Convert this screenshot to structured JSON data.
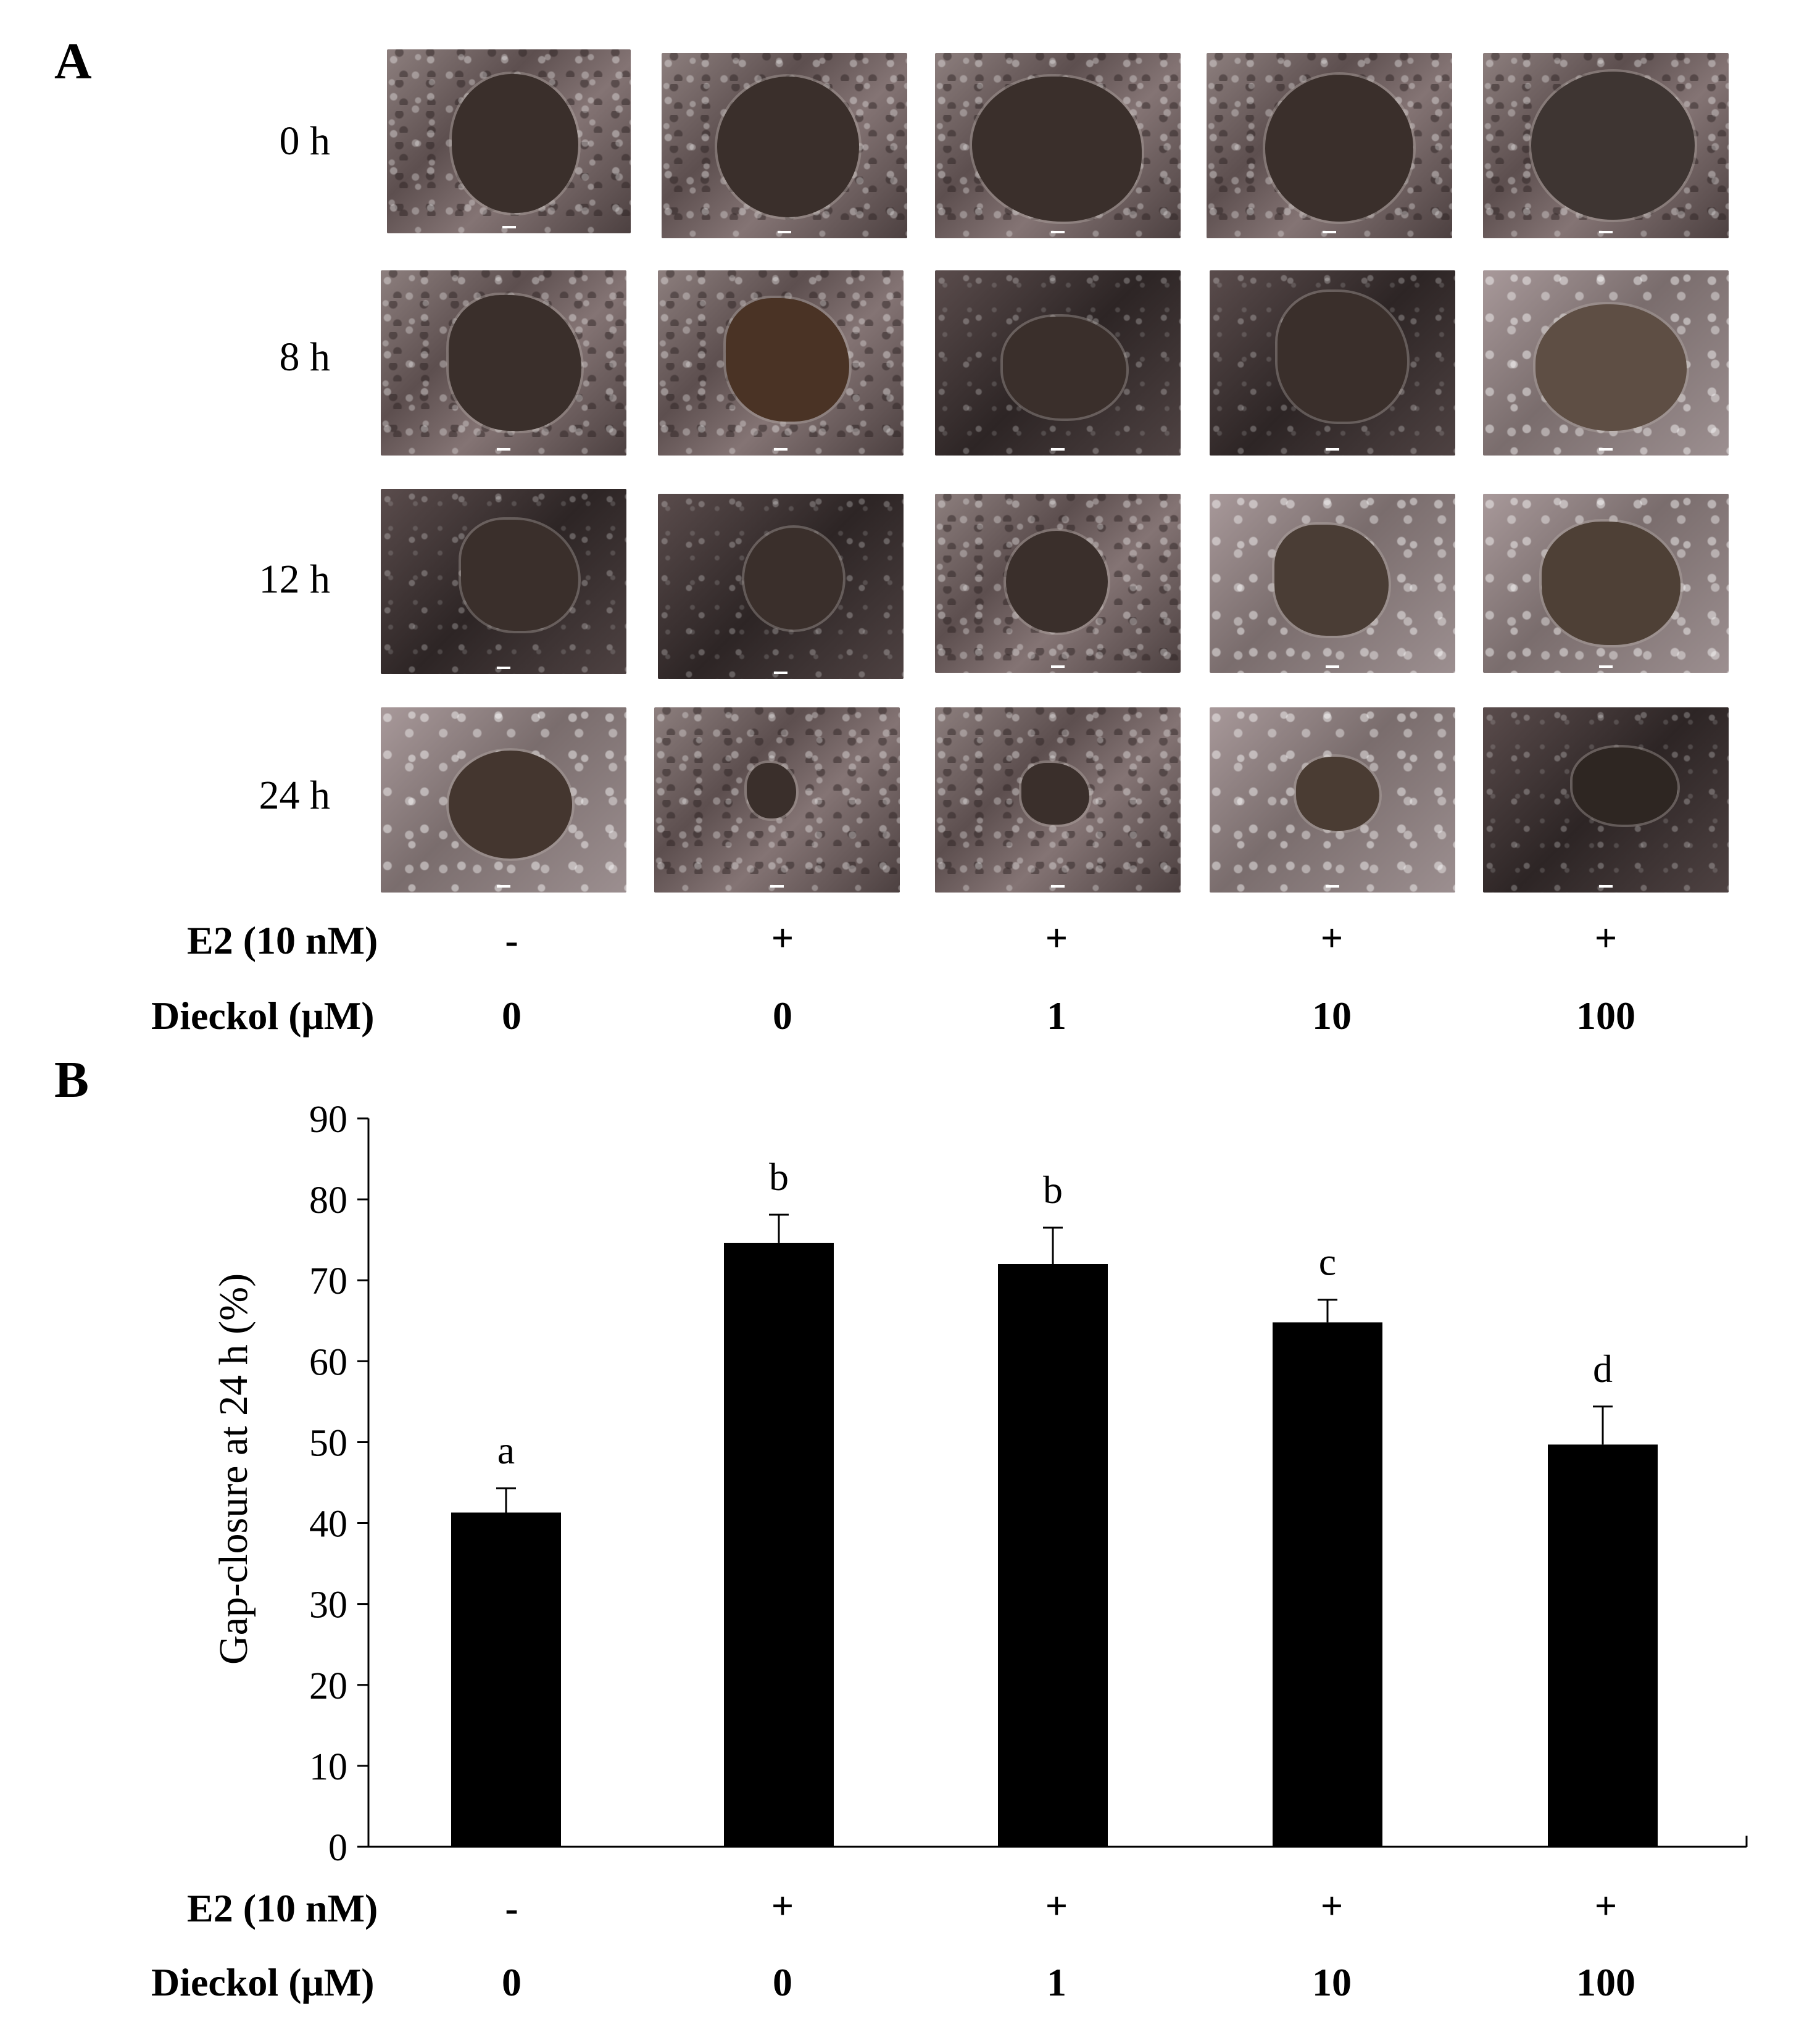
{
  "panel_a": {
    "letter": "A",
    "time_labels": [
      "0 h",
      "8 h",
      "12 h",
      "24 h"
    ]
  },
  "panel_b": {
    "letter": "B"
  },
  "conditions_a": {
    "e2_label": "E2 (10 nM)",
    "dieckol_label": "Dieckol (μM)",
    "e2_values": [
      "-",
      "+",
      "+",
      "+",
      "+"
    ],
    "dieckol_values": [
      "0",
      "0",
      "1",
      "10",
      "100"
    ]
  },
  "conditions_b": {
    "e2_label": "E2 (10 nM)",
    "dieckol_label": "Dieckol (μM)",
    "e2_values": [
      "-",
      "+",
      "+",
      "+",
      "+"
    ],
    "dieckol_values": [
      "0",
      "0",
      "1",
      "10",
      "100"
    ]
  },
  "chart_data": {
    "type": "bar",
    "categories": [
      "E2 - / Dieckol 0",
      "E2 + / Dieckol 0",
      "E2 + / Dieckol 1",
      "E2 + / Dieckol 10",
      "E2 + / Dieckol 100"
    ],
    "values": [
      41.3,
      74.6,
      72.0,
      64.8,
      49.7
    ],
    "errors": [
      3.0,
      3.5,
      4.5,
      2.8,
      4.7
    ],
    "significance_letters": [
      "a",
      "b",
      "b",
      "c",
      "d"
    ],
    "ylabel": "Gap-closure at 24 h (%)",
    "ylim": [
      0,
      90
    ],
    "yticks": [
      0,
      10,
      20,
      30,
      40,
      50,
      60,
      70,
      80,
      90
    ],
    "bar_color": "#000000",
    "grid": false
  }
}
